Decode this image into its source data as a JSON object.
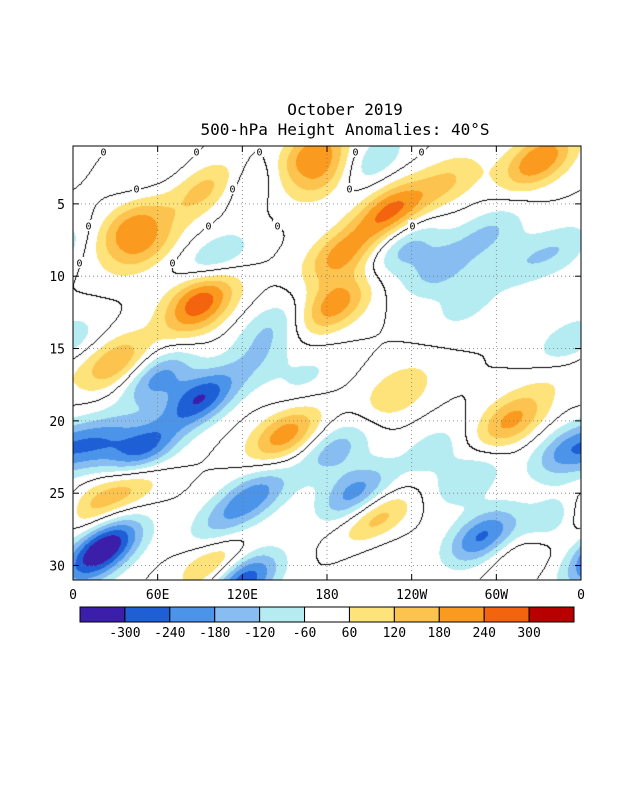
{
  "chart_data": {
    "type": "heatmap",
    "title": "October 2019",
    "subtitle": "500-hPa Height Anomalies: 40°S",
    "xlabel": "",
    "ylabel": "",
    "x_ticks": [
      {
        "lon": 0,
        "label": "0"
      },
      {
        "lon": 60,
        "label": "60E"
      },
      {
        "lon": 120,
        "label": "120E"
      },
      {
        "lon": 180,
        "label": "180"
      },
      {
        "lon": 240,
        "label": "120W"
      },
      {
        "lon": 300,
        "label": "60W"
      },
      {
        "lon": 360,
        "label": "0"
      }
    ],
    "y_ticks": [
      5,
      10,
      15,
      20,
      25,
      30
    ],
    "xlim": [
      0,
      360
    ],
    "ylim": [
      1,
      31
    ],
    "y_inverted": true,
    "grid": true,
    "legend": "bottom",
    "colorbar": {
      "colors": [
        "#3b1faa",
        "#1e5fd6",
        "#4b94ea",
        "#87bdf0",
        "#b4ecf2",
        "#ffffff",
        "#fde37a",
        "#fcc34e",
        "#fa9a1e",
        "#f4630e",
        "#b90000"
      ],
      "labels": [
        "-300",
        "-240",
        "-180",
        "-120",
        "-60",
        "60",
        "120",
        "180",
        "240",
        "300"
      ]
    },
    "zero_contour_label": "0",
    "anomaly_centers": [
      {
        "lon": 168,
        "day": 1.5,
        "value": 200
      },
      {
        "lon": 95,
        "day": 4,
        "value": 150
      },
      {
        "lon": 265,
        "day": 3.5,
        "value": 120
      },
      {
        "lon": 330,
        "day": 2,
        "value": 240
      },
      {
        "lon": 40,
        "day": 6.5,
        "value": 180
      },
      {
        "lon": 90,
        "day": 11,
        "value": 190
      },
      {
        "lon": 190,
        "day": 8.5,
        "value": 200
      },
      {
        "lon": 225,
        "day": 5.5,
        "value": 250
      },
      {
        "lon": 185,
        "day": 12,
        "value": 220
      },
      {
        "lon": 90,
        "day": 12.5,
        "value": 170
      },
      {
        "lon": 30,
        "day": 16,
        "value": 180
      },
      {
        "lon": 50,
        "day": 8,
        "value": 150
      },
      {
        "lon": 150,
        "day": 21,
        "value": 220
      },
      {
        "lon": 230,
        "day": 18,
        "value": 120
      },
      {
        "lon": 310,
        "day": 20,
        "value": 200
      },
      {
        "lon": 345,
        "day": 16,
        "value": 120
      },
      {
        "lon": 215,
        "day": 27,
        "value": 210
      },
      {
        "lon": 100,
        "day": 30,
        "value": 150
      },
      {
        "lon": 320,
        "day": 29,
        "value": 90
      },
      {
        "lon": 10,
        "day": 26,
        "value": 120
      },
      {
        "lon": 40,
        "day": 24.5,
        "value": 140
      },
      {
        "lon": 180,
        "day": 3,
        "value": 150
      },
      {
        "lon": 210,
        "day": 2,
        "value": -130
      },
      {
        "lon": 55,
        "day": 2.5,
        "value": -60
      },
      {
        "lon": 125,
        "day": 3.5,
        "value": -80
      },
      {
        "lon": 235,
        "day": 8,
        "value": -140
      },
      {
        "lon": 260,
        "day": 9.5,
        "value": -140
      },
      {
        "lon": 278,
        "day": 12,
        "value": -80
      },
      {
        "lon": 295,
        "day": 7,
        "value": -120
      },
      {
        "lon": 320,
        "day": 9,
        "value": -90
      },
      {
        "lon": 350,
        "day": 8,
        "value": -90
      },
      {
        "lon": 350,
        "day": 15,
        "value": -190
      },
      {
        "lon": 100,
        "day": 9,
        "value": -150
      },
      {
        "lon": 140,
        "day": 13.5,
        "value": -110
      },
      {
        "lon": 130,
        "day": 16,
        "value": -90
      },
      {
        "lon": 90,
        "day": 18.5,
        "value": -290
      },
      {
        "lon": 60,
        "day": 17,
        "value": -200
      },
      {
        "lon": 50,
        "day": 22,
        "value": -270
      },
      {
        "lon": 20,
        "day": 21.5,
        "value": -180
      },
      {
        "lon": 165,
        "day": 17,
        "value": -70
      },
      {
        "lon": 185,
        "day": 22,
        "value": -150
      },
      {
        "lon": 200,
        "day": 25,
        "value": -210
      },
      {
        "lon": 215,
        "day": 28,
        "value": -90
      },
      {
        "lon": 130,
        "day": 25,
        "value": -190
      },
      {
        "lon": 120,
        "day": 31,
        "value": -300
      },
      {
        "lon": 105,
        "day": 27,
        "value": -120
      },
      {
        "lon": 280,
        "day": 24,
        "value": -120
      },
      {
        "lon": 290,
        "day": 28,
        "value": -250
      },
      {
        "lon": 340,
        "day": 27,
        "value": -140
      },
      {
        "lon": 350,
        "day": 22,
        "value": -190
      },
      {
        "lon": 25,
        "day": 28.5,
        "value": -290
      },
      {
        "lon": 10,
        "day": 30,
        "value": -150
      },
      {
        "lon": 255,
        "day": 22,
        "value": -90
      }
    ]
  }
}
